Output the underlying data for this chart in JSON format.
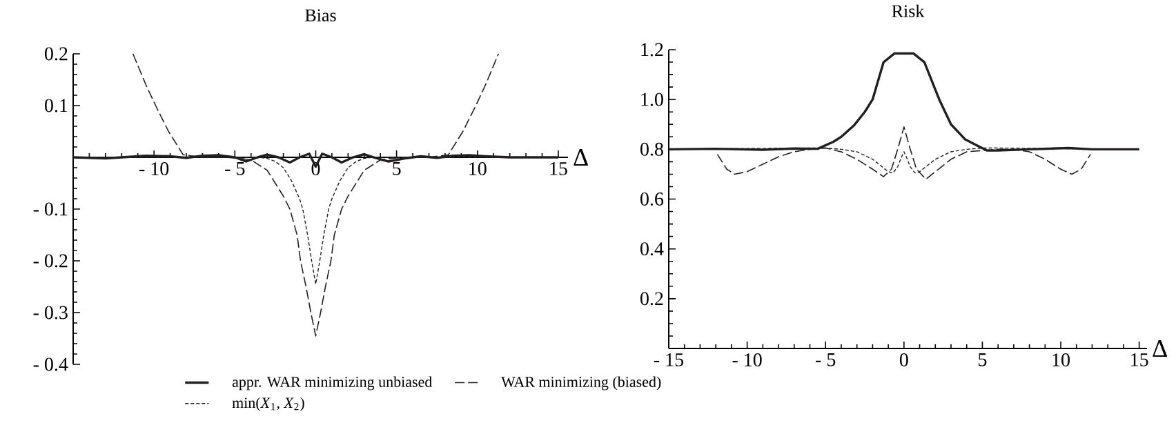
{
  "chart_data": [
    {
      "type": "line",
      "title": "Bias",
      "xlabel": "Δ",
      "xlim": [
        -15,
        15.6
      ],
      "ylim": [
        -0.4,
        0.2
      ],
      "xticks": [
        {
          "value": -15,
          "label": null
        },
        {
          "value": -10,
          "label": "- 10"
        },
        {
          "value": -5,
          "label": "- 5"
        },
        0,
        5,
        10,
        15
      ],
      "yticks": [
        {
          "value": -0.4,
          "label": "- 0.4"
        },
        {
          "value": -0.3,
          "label": "- 0.3"
        },
        {
          "value": -0.2,
          "label": "- 0.2"
        },
        {
          "value": -0.1,
          "label": "- 0.1"
        },
        {
          "value": 0,
          "label": null
        },
        0.1,
        0.2
      ],
      "legend": "bottom",
      "series": [
        {
          "name": "appr. WAR minimizing unbiased",
          "color": "#231f20",
          "line_style": "solid",
          "x": [
            -15,
            -13,
            -12,
            -10.5,
            -9,
            -8,
            -7,
            -6,
            -5,
            -4.3,
            -3.6,
            -3,
            -2.3,
            -1.6,
            -1,
            -0.4,
            0,
            0.4,
            1,
            1.6,
            2.3,
            3,
            3.6,
            4.5,
            5.5,
            6.5,
            7.5,
            8.5,
            9.5,
            10.5,
            12,
            13.5,
            15
          ],
          "values": [
            0,
            -0.002,
            0,
            0.003,
            0.002,
            -0.001,
            0.003,
            0.004,
            0,
            -0.008,
            0,
            0.005,
            0,
            -0.01,
            0,
            0.007,
            -0.018,
            0.007,
            0,
            -0.01,
            0,
            0.006,
            0,
            -0.008,
            -0.002,
            0.002,
            -0.001,
            0.003,
            0.004,
            0.002,
            0,
            0,
            0
          ]
        },
        {
          "name": "min(*X*$_{1}$, *X*$_{2}$)",
          "color": "#231f20",
          "line_style": "dotted",
          "x": [
            -15,
            -3.5,
            -3,
            -2.5,
            -2,
            -1.5,
            -1,
            -0.8,
            -0.5,
            -0.25,
            0,
            0.25,
            0.5,
            0.8,
            1,
            1.5,
            2,
            2.5,
            3,
            3.5,
            15
          ],
          "values": [
            0,
            0,
            -0.002,
            -0.008,
            -0.02,
            -0.045,
            -0.08,
            -0.1,
            -0.15,
            -0.2,
            -0.245,
            -0.2,
            -0.15,
            -0.1,
            -0.08,
            -0.045,
            -0.02,
            -0.008,
            -0.002,
            0,
            0
          ]
        },
        {
          "name": "WAR minimizing (biased)",
          "color": "#231f20",
          "line_style": "dashed",
          "x": [
            -11.3,
            -10.5,
            -9.9,
            -9.1,
            -8.2,
            -7,
            -5.5,
            -4.7,
            -4,
            -3,
            -2.5,
            -2,
            -1.6,
            -1.15,
            -0.94,
            -0.6,
            -0.3,
            0,
            0.3,
            0.6,
            0.94,
            1.15,
            1.6,
            2,
            2.5,
            3,
            4,
            4.7,
            5.5,
            7,
            8.2,
            9.1,
            9.9,
            10.5,
            11.3
          ],
          "values": [
            0.2,
            0.14,
            0.1,
            0.05,
            0.005,
            0,
            0,
            -0.002,
            -0.005,
            -0.025,
            -0.05,
            -0.075,
            -0.1,
            -0.15,
            -0.2,
            -0.25,
            -0.3,
            -0.345,
            -0.3,
            -0.25,
            -0.2,
            -0.15,
            -0.1,
            -0.075,
            -0.05,
            -0.025,
            -0.005,
            -0.002,
            0,
            0,
            0.005,
            0.05,
            0.1,
            0.14,
            0.2
          ]
        }
      ]
    },
    {
      "type": "line",
      "title": "Risk",
      "xlabel": "Δ",
      "xlim": [
        -15,
        15.5
      ],
      "ylim": [
        0,
        1.2
      ],
      "xticks": [
        {
          "value": -15,
          "label": "- 15"
        },
        {
          "value": -10,
          "label": "- 10"
        },
        {
          "value": -5,
          "label": "- 5"
        },
        0,
        5,
        10,
        15
      ],
      "yticks": [
        {
          "value": 0,
          "label": null
        },
        0.2,
        0.4,
        0.6,
        {
          "value": 0.8,
          "label": "0.8"
        },
        {
          "value": 1.0,
          "label": "1.0"
        },
        {
          "value": 1.2,
          "label": "1.2"
        }
      ],
      "series": [
        {
          "color": "#231f20",
          "line_style": "solid",
          "x": [
            -15,
            -12,
            -9,
            -7,
            -5.5,
            -4.5,
            -4,
            -3.2,
            -2.5,
            -2,
            -1.3,
            -0.6,
            0.6,
            1.3,
            2.25,
            3,
            3.9,
            5.3,
            6,
            8,
            10.5,
            12,
            15
          ],
          "values": [
            0.8,
            0.802,
            0.798,
            0.803,
            0.802,
            0.83,
            0.85,
            0.895,
            0.95,
            1.0,
            1.15,
            1.185,
            1.185,
            1.15,
            1.0,
            0.9,
            0.84,
            0.795,
            0.795,
            0.8,
            0.805,
            0.8,
            0.8
          ]
        },
        {
          "color": "#231f20",
          "line_style": "dotted",
          "x": [
            -15,
            -6,
            -5,
            -4,
            -3,
            -2,
            -1.5,
            -1,
            -0.7,
            -0.4,
            -0.15,
            0,
            0.15,
            0.4,
            0.7,
            1,
            1.5,
            2,
            3,
            4,
            5,
            6,
            15
          ],
          "values": [
            0.8,
            0.805,
            0.805,
            0.8,
            0.79,
            0.76,
            0.735,
            0.71,
            0.705,
            0.73,
            0.77,
            0.79,
            0.77,
            0.73,
            0.705,
            0.71,
            0.735,
            0.76,
            0.79,
            0.8,
            0.805,
            0.805,
            0.8
          ]
        },
        {
          "color": "#231f20",
          "line_style": "dashed",
          "x": [
            -11.9,
            -11.3,
            -10.8,
            -10,
            -9,
            -8,
            -7,
            -6,
            -5,
            -4,
            -3,
            -2,
            -1.3,
            -0.8,
            -0.4,
            0,
            0.4,
            0.8,
            1.4,
            2,
            3,
            4,
            5,
            6,
            7,
            8,
            9,
            10,
            10.7,
            11.3,
            11.9
          ],
          "values": [
            0.78,
            0.72,
            0.7,
            0.71,
            0.74,
            0.77,
            0.79,
            0.8,
            0.805,
            0.79,
            0.76,
            0.72,
            0.69,
            0.72,
            0.8,
            0.89,
            0.8,
            0.72,
            0.68,
            0.71,
            0.76,
            0.79,
            0.795,
            0.8,
            0.8,
            0.79,
            0.76,
            0.72,
            0.7,
            0.72,
            0.78
          ]
        }
      ]
    }
  ]
}
